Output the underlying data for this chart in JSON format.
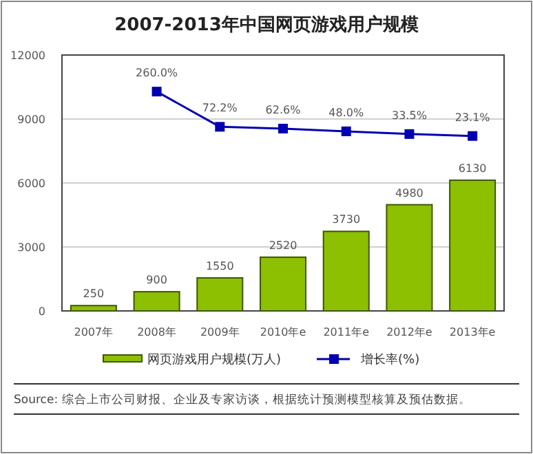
{
  "chart_data": {
    "type": "bar",
    "title": "2007-2013年中国网页游戏用户规模",
    "categories": [
      "2007年",
      "2008年",
      "2009年",
      "2010年e",
      "2011年e",
      "2012年e",
      "2013年e"
    ],
    "series": [
      {
        "name": "网页游戏用户规模(万人)",
        "color": "#8cc000",
        "values": [
          250,
          900,
          1550,
          2520,
          3730,
          4980,
          6130
        ]
      },
      {
        "name": "增长率(%)",
        "type": "line",
        "axis": "y2",
        "color": "#0000b0",
        "marker": "square",
        "values": [
          null,
          260.0,
          72.2,
          62.6,
          48.0,
          33.5,
          23.1
        ],
        "value_labels": [
          null,
          "260.0%",
          "72.2%",
          "62.6%",
          "48.0%",
          "33.5%",
          "23.1%"
        ]
      }
    ],
    "ylim": [
      0,
      12000
    ],
    "yticks": [
      0,
      3000,
      6000,
      9000,
      12000
    ],
    "y2lim": [
      -910,
      455
    ],
    "data_labels": true,
    "grid": "y",
    "legend": "bottom",
    "annotations": [
      "Source: 综合上市公司财报、企业及专家访谈，根据统计预测模型核算及预估数据。"
    ]
  }
}
